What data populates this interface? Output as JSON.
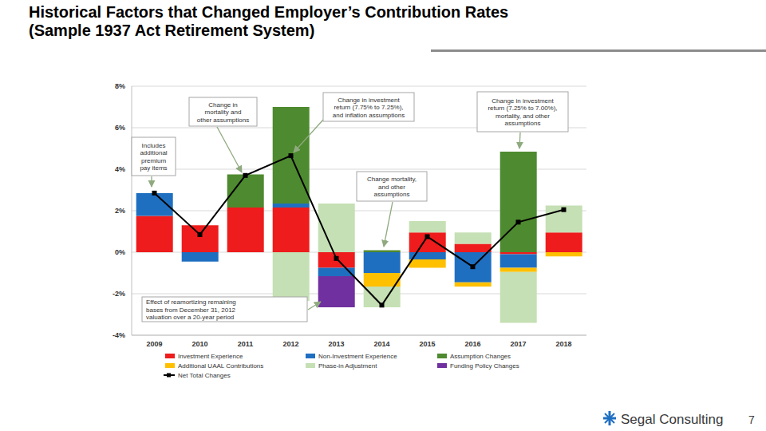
{
  "chart_data": {
    "type": "bar",
    "title": "Historical Factors that Changed Employer’s Contribution Rates",
    "subtitle": "(Sample 1937 Act Retirement System)",
    "stacked": true,
    "grid": true,
    "legend": "bottom",
    "categories": [
      "2009",
      "2010",
      "2011",
      "2012",
      "2013",
      "2014",
      "2015",
      "2016",
      "2017",
      "2018"
    ],
    "series": [
      {
        "name": "Investment Experience",
        "color": "#ee1c1c",
        "values": [
          1.75,
          1.3,
          2.15,
          2.15,
          -0.75,
          0,
          0.95,
          0.4,
          -0.1,
          0.95
        ]
      },
      {
        "name": "Non-Investment Experience",
        "color": "#1f6fc1",
        "values": [
          1.1,
          -0.45,
          0,
          0.2,
          -0.4,
          -1.0,
          -0.35,
          -1.45,
          -0.65,
          0
        ]
      },
      {
        "name": "Assumption Changes",
        "color": "#4e8a2f",
        "values": [
          0,
          0,
          1.6,
          4.65,
          0,
          0.1,
          0,
          0,
          4.85,
          0
        ]
      },
      {
        "name": "Additional UAAL Contributions",
        "color": "#ffc000",
        "values": [
          0,
          0,
          0,
          0,
          0,
          -0.65,
          -0.4,
          -0.2,
          -0.2,
          -0.2
        ]
      },
      {
        "name": "Phase-in Adjustment",
        "color": "#c5e0b4",
        "values": [
          0,
          0,
          0,
          -2.35,
          2.35,
          -1.0,
          0.55,
          0.55,
          -2.45,
          1.3
        ]
      },
      {
        "name": "Funding Policy Changes",
        "color": "#7030a0",
        "values": [
          0,
          0,
          0,
          0,
          -1.5,
          0,
          0,
          0,
          0,
          0
        ]
      },
      {
        "name": "Net Total Changes",
        "type": "line",
        "marker": "square",
        "color": "#000000",
        "values": [
          2.85,
          0.85,
          3.7,
          4.65,
          -0.3,
          -2.55,
          0.75,
          -0.7,
          1.45,
          2.05
        ]
      }
    ],
    "ylim": [
      -4,
      8
    ],
    "yticks": [
      {
        "value": -4,
        "label": "-4%"
      },
      {
        "value": -2,
        "label": "-2%"
      },
      {
        "value": 0,
        "label": "0%"
      },
      {
        "value": 2,
        "label": "2%"
      },
      {
        "value": 4,
        "label": "4%"
      },
      {
        "value": 6,
        "label": "6%"
      },
      {
        "value": 8,
        "label": "8%"
      }
    ],
    "annotations": [
      {
        "category": "2009",
        "lines": [
          "Includes",
          "additional",
          "premium",
          "pay items"
        ]
      },
      {
        "category": "2011",
        "lines": [
          "Change in",
          "mortality and",
          "other assumptions"
        ]
      },
      {
        "category": "2012",
        "lines": [
          "Change in investment",
          "return (7.75% to 7.25%),",
          "and inflation assumptions"
        ]
      },
      {
        "category": "2014",
        "lines": [
          "Change mortality,",
          "and other",
          "assumptions"
        ]
      },
      {
        "category": "2017",
        "lines": [
          "Change in investment",
          "return (7.25% to 7.00%),",
          "mortality, and other",
          "assumptions"
        ]
      },
      {
        "category": "2013",
        "lines": [
          "Effect of reamortizing remaining",
          "bases from December 31, 2012",
          "valuation over a 20-year period"
        ]
      }
    ],
    "source": "Segal Consulting",
    "page": 7
  }
}
